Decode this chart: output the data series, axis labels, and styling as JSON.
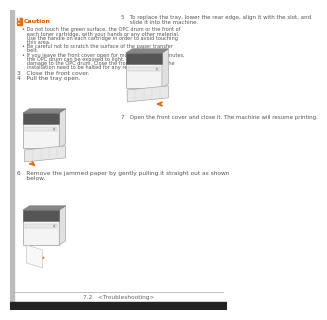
{
  "page_bg": "#ffffff",
  "caution_icon_color": "#e07010",
  "caution_title": "Caution",
  "caution_title_color": "#cc5500",
  "text_color": "#555555",
  "dark_text": "#333333",
  "footer_text": "7.2   <Troubleshooting>",
  "footer_line_color": "#bbbbbb",
  "arrow_color": "#e07010",
  "left_bar_color": "#bbbbbb",
  "body_font_size": 5.2,
  "small_font_size": 4.5,
  "footer_font_size": 4.2,
  "caution_lines": [
    "• Do not touch the green surface, the OPC drum or the front of",
    "   each toner cartridge, with your hands or any other material.",
    "   Use the handle on each cartridge in order to avoid touching",
    "   this area.",
    "• Be careful not to scratch the surface of the paper transfer",
    "   belt.",
    "• If you leave the front cover open for more than a few minutes,",
    "   the OPC drum can be exposed to light. This will cause",
    "   damage to the OPC drum. Close the front cover should the",
    "   installation need to be halted for any reason."
  ],
  "step3": "3   Close the front cover.",
  "step4": "4   Pull the tray open.",
  "step5_line1": "5   To replace the tray, lower the rear edge, align it with the slot, and",
  "step5_line2": "     slide it into the machine.",
  "step6_line1": "6   Remove the jammed paper by gently pulling it straight out as shown",
  "step6_line2": "     below.",
  "step7": "7   Open the front cover and close it. The machine will resume printing.",
  "bottom_bar_color": "#222222",
  "sep_line_color": "#aaaaaa"
}
